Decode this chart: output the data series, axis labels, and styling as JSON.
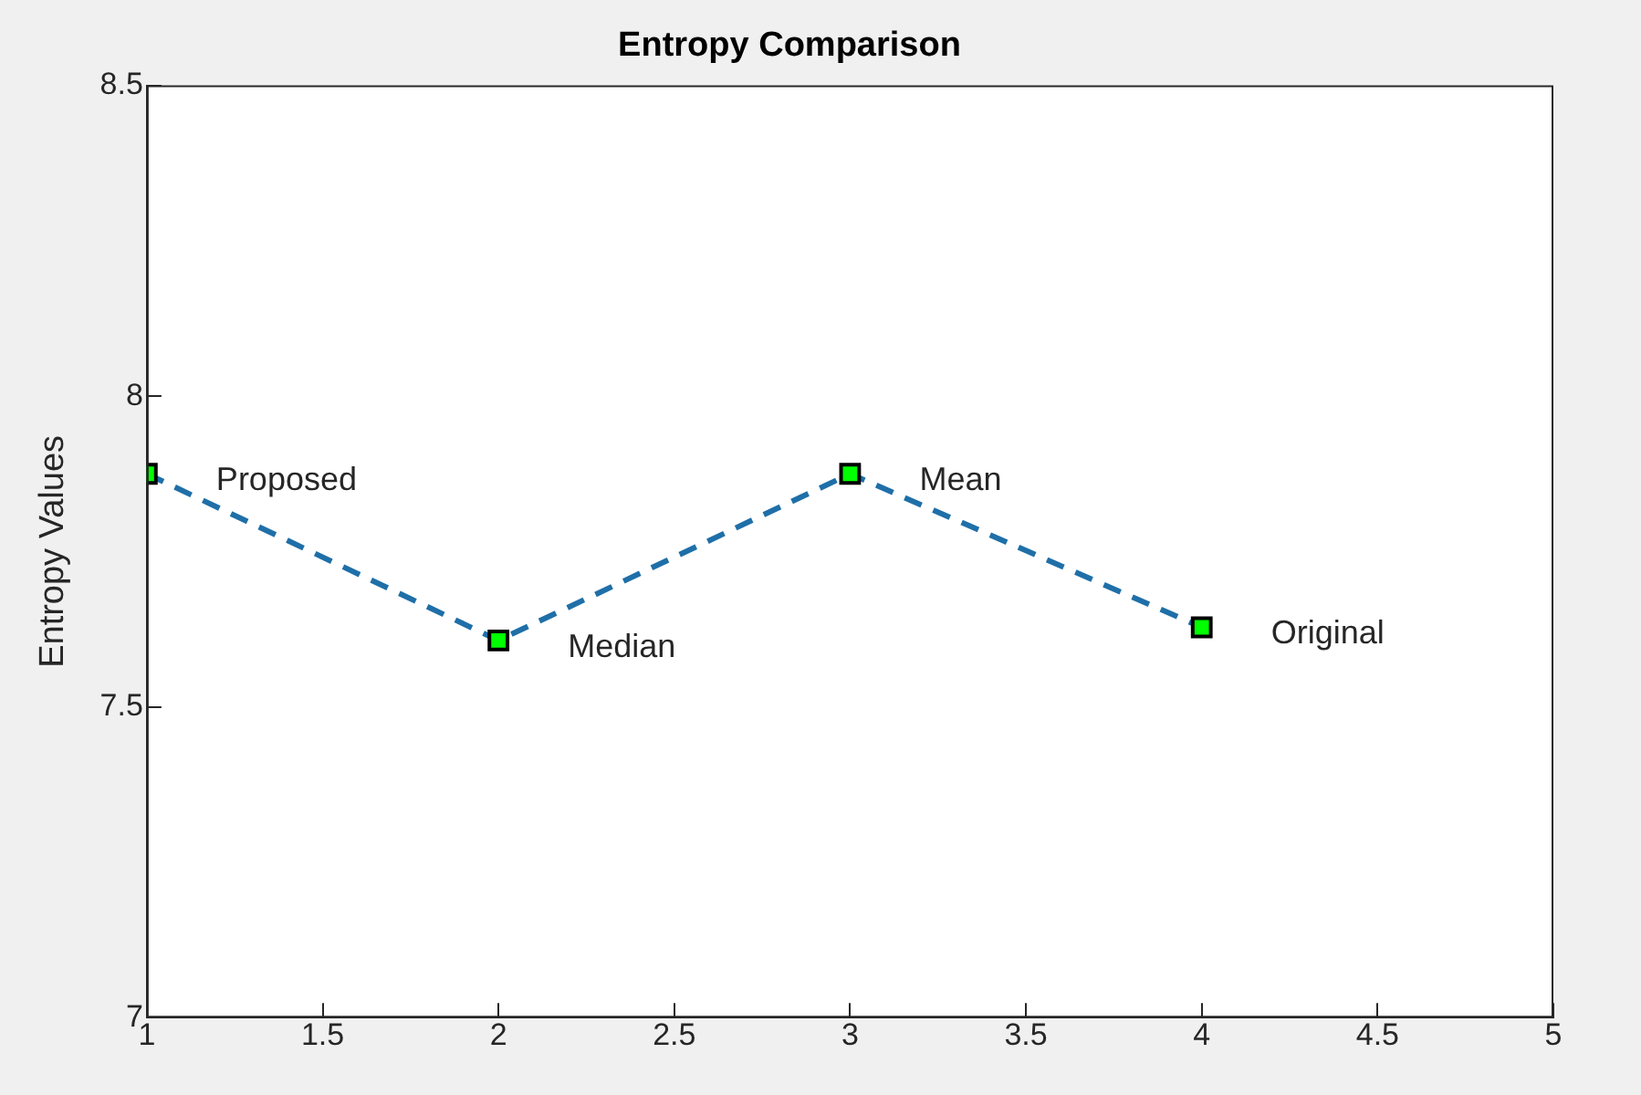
{
  "chart_data": {
    "type": "line",
    "title": "Entropy Comparison",
    "ylabel": "Entropy Values",
    "x": [
      1,
      2,
      3,
      4
    ],
    "series": [
      {
        "color": "#1f6fa8",
        "values": [
          7.875,
          7.607,
          7.875,
          7.628
        ]
      }
    ],
    "marker": "square",
    "line_style": "dashed",
    "grid": false,
    "legend": false,
    "xlim": [
      1,
      5
    ],
    "xticks": [
      1,
      1.5,
      2,
      2.5,
      3,
      3.5,
      4,
      4.5,
      5
    ],
    "ylim": [
      7,
      8.5
    ],
    "yticks": [
      7,
      7.5,
      8,
      8.5
    ],
    "annotations": [
      {
        "text": "Proposed",
        "x": 1,
        "y": 7.875
      },
      {
        "text": "Median",
        "x": 2,
        "y": 7.607
      },
      {
        "text": "Mean",
        "x": 3,
        "y": 7.875
      },
      {
        "text": "Original",
        "x": 4,
        "y": 7.628
      }
    ]
  }
}
